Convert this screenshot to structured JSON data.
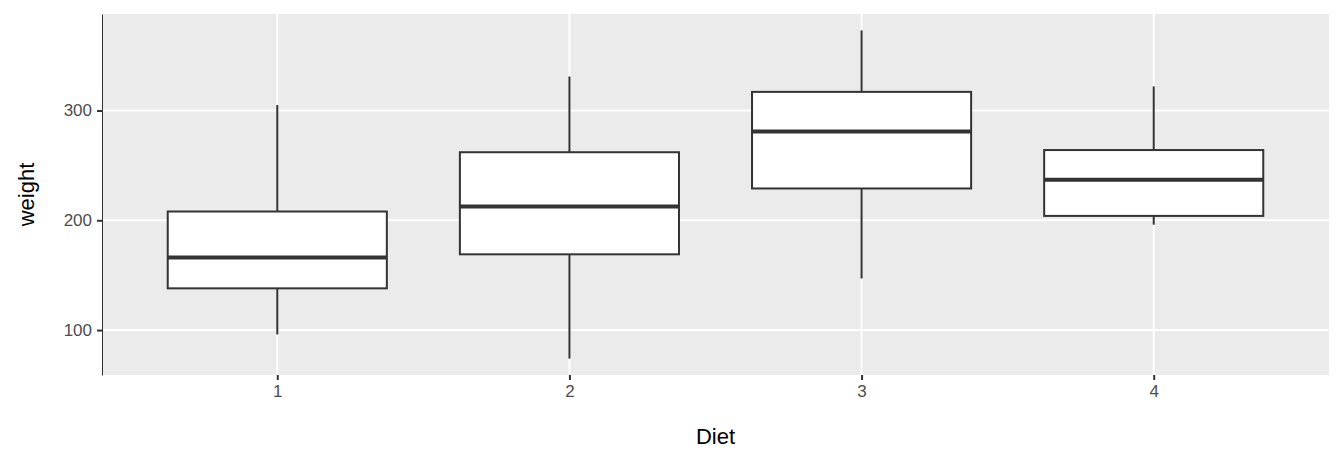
{
  "chart_data": {
    "type": "box",
    "x_label": "Diet",
    "y_label": "weight",
    "categories": [
      "1",
      "2",
      "3",
      "4"
    ],
    "min": [
      96,
      74,
      147,
      196
    ],
    "q1": [
      138,
      169,
      229,
      204
    ],
    "median": [
      166,
      212.5,
      281,
      237
    ],
    "q3": [
      208,
      262,
      317,
      264
    ],
    "max": [
      305,
      331,
      373,
      322
    ],
    "color": "#ffffff",
    "ylim": [
      59.05,
      387.95
    ],
    "yticks": [
      100,
      200,
      300
    ],
    "grid": true
  }
}
